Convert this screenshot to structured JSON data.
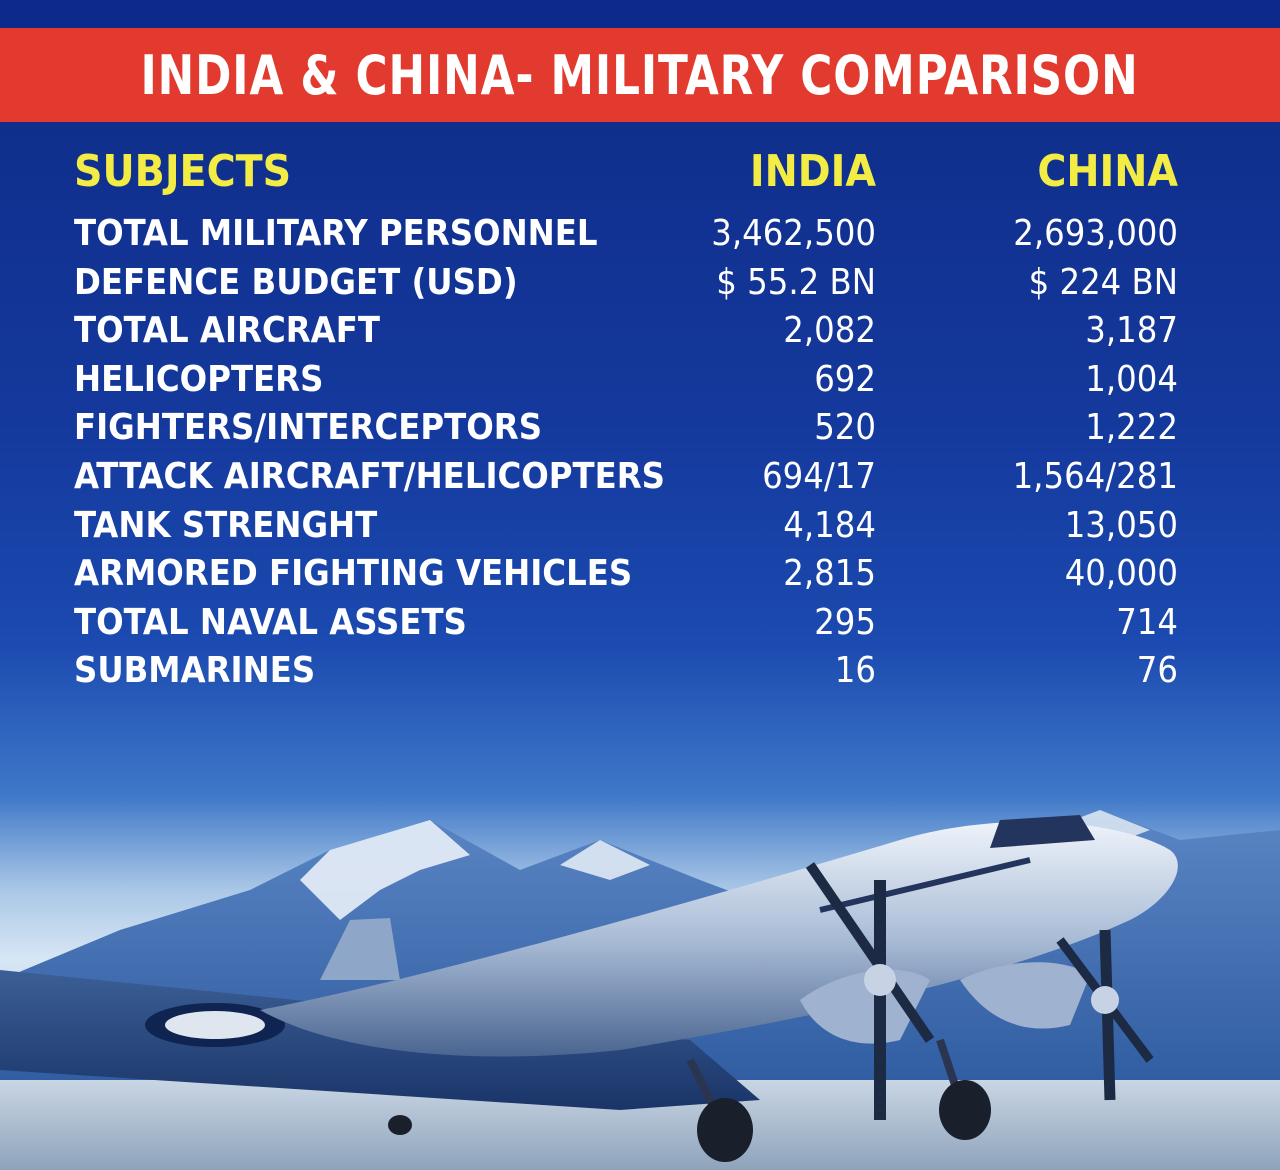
{
  "title": "INDIA & CHINA- MILITARY COMPARISON",
  "columns": {
    "subject": "SUBJECTS",
    "india": "INDIA",
    "china": "CHINA"
  },
  "rows": [
    {
      "subject": "TOTAL MILITARY PERSONNEL",
      "india": "3,462,500",
      "china": "2,693,000"
    },
    {
      "subject": "DEFENCE BUDGET (USD)",
      "india": "$ 55.2 BN",
      "china": "$ 224 BN"
    },
    {
      "subject": "TOTAL AIRCRAFT",
      "india": "2,082",
      "china": "3,187"
    },
    {
      "subject": "HELICOPTERS",
      "india": "692",
      "china": "1,004"
    },
    {
      "subject": "FIGHTERS/INTERCEPTORS",
      "india": "520",
      "china": "1,222"
    },
    {
      "subject": "ATTACK AIRCRAFT/HELICOPTERS",
      "india": "694/17",
      "china": "1,564/281"
    },
    {
      "subject": "TANK STRENGHT",
      "india": "4,184",
      "china": "13,050"
    },
    {
      "subject": "ARMORED FIGHTING VEHICLES",
      "india": "2,815",
      "china": "40,000"
    },
    {
      "subject": "TOTAL NAVAL ASSETS",
      "india": "295",
      "china": "714"
    },
    {
      "subject": "SUBMARINES",
      "india": "16",
      "china": "76"
    }
  ],
  "colors": {
    "banner": "#e23a2e",
    "background": "#14389c",
    "header_text": "#f3ec45",
    "body_text": "#ffffff"
  },
  "illustration": "vintage-transport-aircraft-on-mountain-runway"
}
